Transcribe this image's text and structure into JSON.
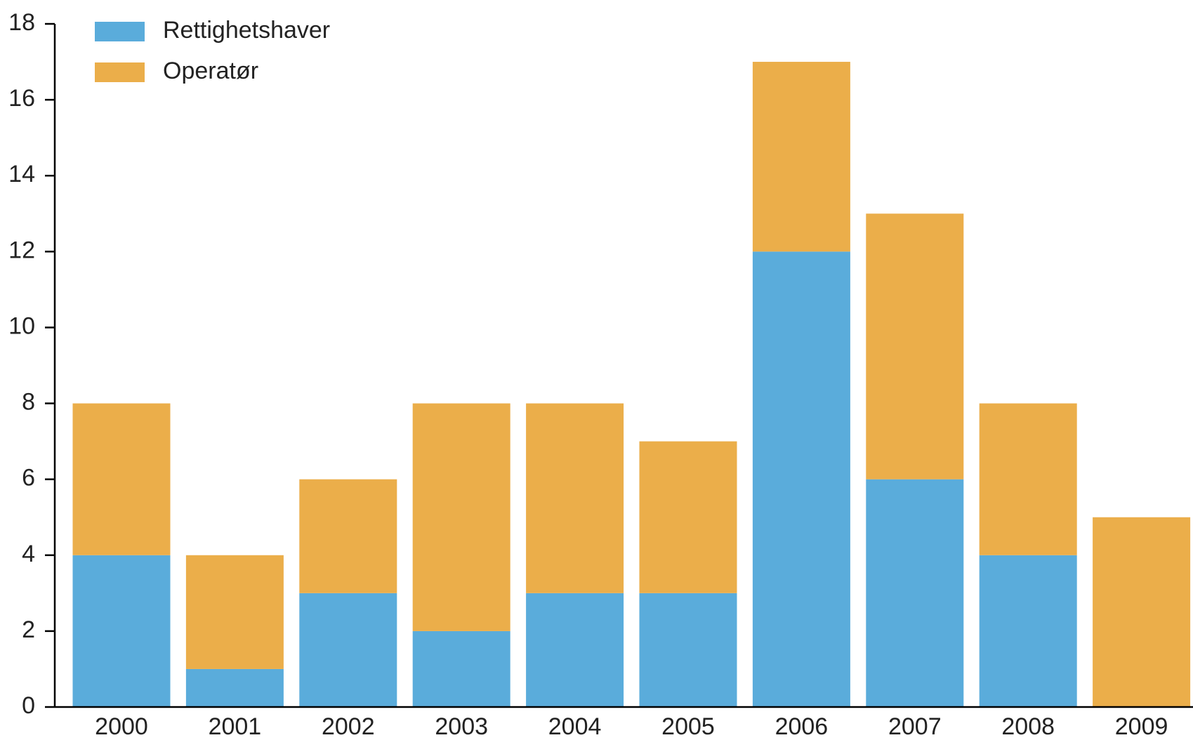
{
  "chart_data": {
    "type": "stacked_bar",
    "categories": [
      "2000",
      "2001",
      "2002",
      "2003",
      "2004",
      "2005",
      "2006",
      "2007",
      "2008",
      "2009"
    ],
    "series": [
      {
        "name": "Rettighetshaver",
        "color": "#5aacdb",
        "values": [
          4,
          1,
          3,
          2,
          3,
          3,
          12,
          6,
          4,
          0
        ]
      },
      {
        "name": "Operatør",
        "color": "#ebae4a",
        "values": [
          4,
          3,
          3,
          6,
          5,
          4,
          5,
          7,
          4,
          5
        ]
      }
    ],
    "ylim": [
      0,
      18
    ],
    "yticks": [
      0,
      2,
      4,
      6,
      8,
      10,
      12,
      14,
      16,
      18
    ],
    "grid": false,
    "legend": "top-left"
  }
}
